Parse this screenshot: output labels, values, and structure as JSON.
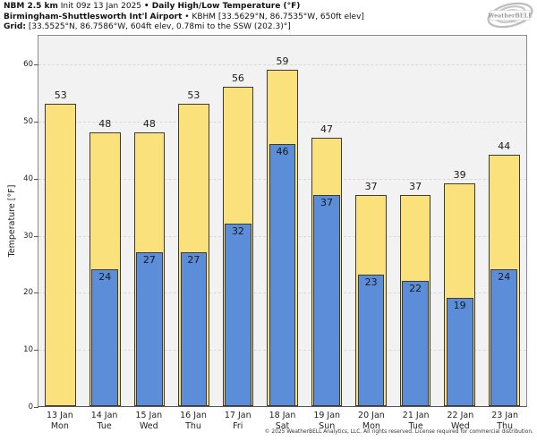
{
  "header": {
    "line1": {
      "bold1": "NBM 2.5 km",
      "regular1": " Init 09z 13 Jan 2025 ",
      "bold2": "• Daily High/Low Temperature (°F)"
    },
    "line2": {
      "bold1": "Birmingham-Shuttlesworth Int'l Airport",
      "regular1": " • KBHM [33.5629°N, 86.7535°W, 650ft elev]"
    },
    "line3": {
      "bold1": "Grid:",
      "regular1": " [33.5525°N, 86.7586°W, 604ft elev, 0.78mi to the SSW (202.3)°]"
    }
  },
  "logo": {
    "text": "WeatherBELL",
    "subtext": "Analytics LLC"
  },
  "chart_data": {
    "type": "bar",
    "title": "NBM 2.5 km Daily High/Low Temperature (°F) — Birmingham-Shuttlesworth Int'l Airport (KBHM)",
    "xlabel": "",
    "ylabel": "Temperature [°F]",
    "ylim": [
      0,
      65.2
    ],
    "yticks": [
      0,
      10,
      20,
      30,
      40,
      50,
      60
    ],
    "grid": "horizontal dashed, major every 10",
    "legend": "none",
    "categories": [
      {
        "date": "13 Jan",
        "day": "Mon"
      },
      {
        "date": "14 Jan",
        "day": "Tue"
      },
      {
        "date": "15 Jan",
        "day": "Wed"
      },
      {
        "date": "16 Jan",
        "day": "Thu"
      },
      {
        "date": "17 Jan",
        "day": "Fri"
      },
      {
        "date": "18 Jan",
        "day": "Sat"
      },
      {
        "date": "19 Jan",
        "day": "Sun"
      },
      {
        "date": "20 Jan",
        "day": "Mon"
      },
      {
        "date": "21 Jan",
        "day": "Tue"
      },
      {
        "date": "22 Jan",
        "day": "Wed"
      },
      {
        "date": "23 Jan",
        "day": "Thu"
      }
    ],
    "series": [
      {
        "name": "Daily High",
        "color": "#FAE17C",
        "values": [
          53,
          48,
          48,
          53,
          56,
          59,
          47,
          37,
          37,
          39,
          44
        ]
      },
      {
        "name": "Daily Low",
        "color": "#5B8DD9",
        "values": [
          null,
          24,
          27,
          27,
          32,
          46,
          37,
          23,
          22,
          19,
          24
        ]
      }
    ]
  },
  "footer": {
    "copyright": "© 2025 WeatherBELL Analytics, LLC. All rights reserved. License required for commercial distribution."
  },
  "colors": {
    "plot_bg": "#F2F2F2",
    "grid": "#D9D9D9",
    "bar_edge": "#3A3A3A",
    "high_fill": "#FAE17C",
    "low_fill": "#5B8DD9",
    "spine": "#8A8A8A"
  }
}
